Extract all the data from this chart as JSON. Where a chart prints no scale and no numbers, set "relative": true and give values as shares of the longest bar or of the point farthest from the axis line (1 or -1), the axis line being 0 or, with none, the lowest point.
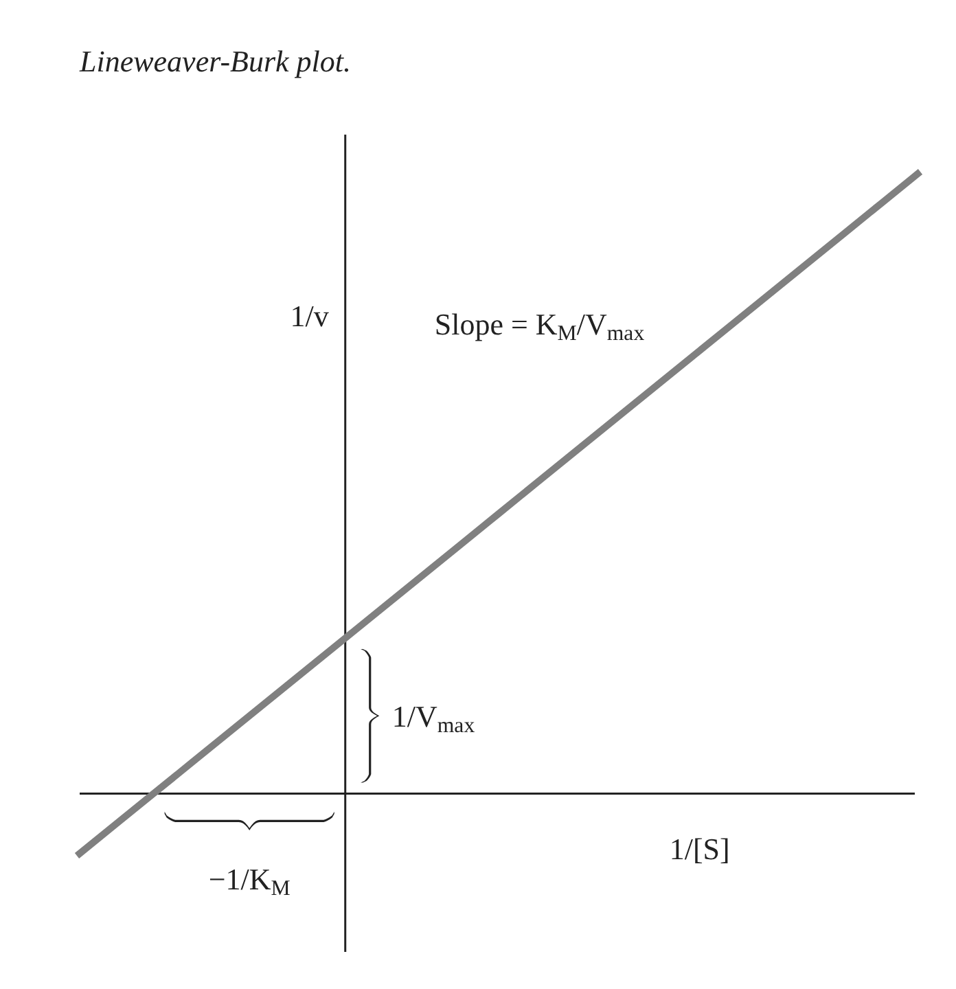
{
  "chart_data": {
    "type": "line",
    "title": "Lineweaver-Burk plot.",
    "xlabel": "1/[S]",
    "ylabel": "1/v",
    "relative": true,
    "color": "#808080",
    "categories": [
      null,
      null,
      null,
      null,
      null,
      null,
      null,
      null,
      null,
      null,
      null,
      null,
      null,
      null,
      null,
      null,
      null,
      null,
      null,
      null,
      null,
      null,
      null
    ],
    "values": [
      -0.1,
      -0.05,
      0.0,
      0.05,
      0.1,
      0.15,
      0.2,
      0.25,
      0.3,
      0.35,
      0.4,
      0.45,
      0.5,
      0.55,
      0.6,
      0.65,
      0.7,
      0.75,
      0.8,
      0.85,
      0.9,
      0.95,
      1.0
    ],
    "annotations": [
      "Slope = K$_{M}$/V$_{max}$",
      "1/V$_{max}$",
      "−1/K$_{M}$"
    ]
  }
}
